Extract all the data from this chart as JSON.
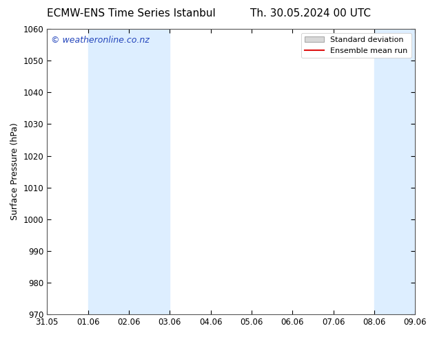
{
  "title_left": "ECMW-ENS Time Series Istanbul",
  "title_right": "Th. 30.05.2024 00 UTC",
  "ylabel": "Surface Pressure (hPa)",
  "ylim": [
    970,
    1060
  ],
  "yticks": [
    970,
    980,
    990,
    1000,
    1010,
    1020,
    1030,
    1040,
    1050,
    1060
  ],
  "xtick_labels": [
    "31.05",
    "01.06",
    "02.06",
    "03.06",
    "04.06",
    "05.06",
    "06.06",
    "07.06",
    "08.06",
    "09.06"
  ],
  "xtick_positions": [
    0,
    1,
    2,
    3,
    4,
    5,
    6,
    7,
    8,
    9
  ],
  "shaded_bands": [
    {
      "xmin": 1,
      "xmax": 3
    },
    {
      "xmin": 8,
      "xmax": 9
    }
  ],
  "shade_color": "#ddeeff",
  "watermark_text": "© weatheronline.co.nz",
  "watermark_color": "#2244bb",
  "legend_std_label": "Standard deviation",
  "legend_mean_label": "Ensemble mean run",
  "legend_std_facecolor": "#d8d8d8",
  "legend_std_edgecolor": "#aaaaaa",
  "legend_mean_color": "#dd1111",
  "bg_color": "#ffffff",
  "spine_color": "#555555",
  "title_fontsize": 11,
  "tick_fontsize": 8.5,
  "ylabel_fontsize": 9,
  "watermark_fontsize": 9,
  "legend_fontsize": 8
}
